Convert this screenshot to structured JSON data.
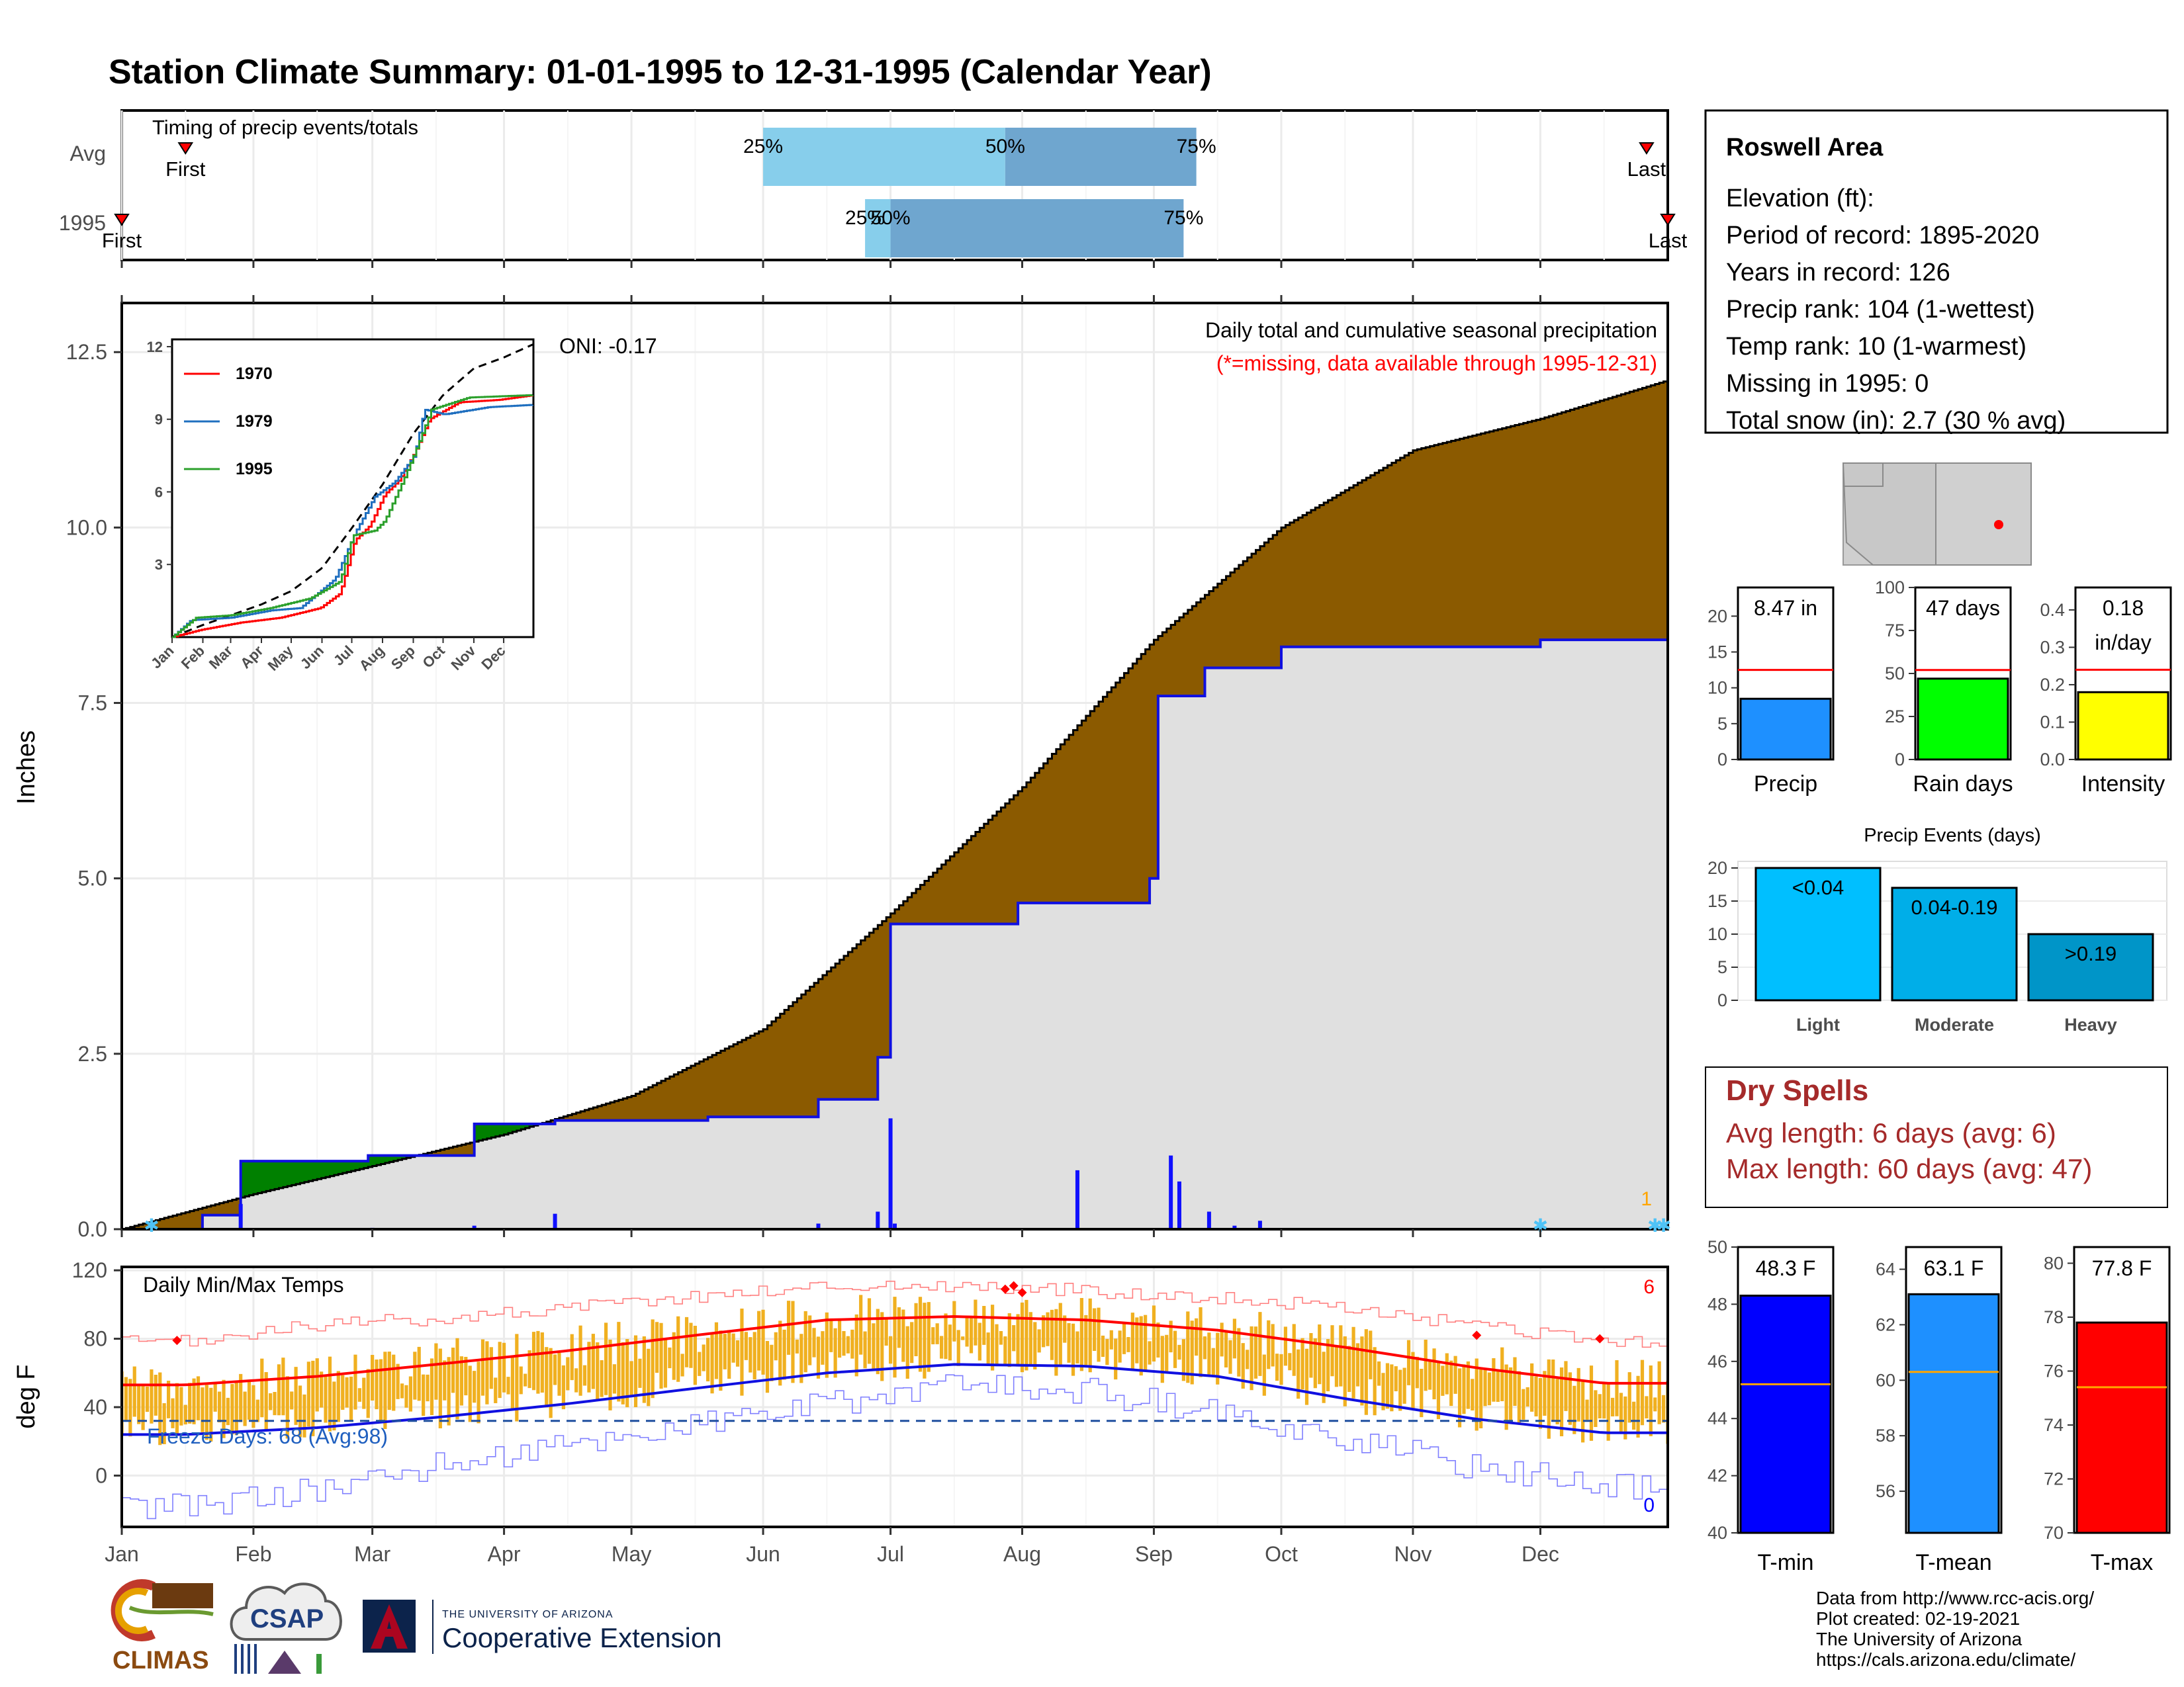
{
  "title": "Station Climate Summary: 01-01-1995 to 12-31-1995 (Calendar Year)",
  "colors": {
    "title": "#000080",
    "precip_area": "#8B5A00",
    "cum_year_line": "#1010e0",
    "wet_excess": "#008000",
    "gray_fill": "#e0e0e0",
    "daily_bar": "#1010ff",
    "temp_bar": "#f0b020",
    "tmax_line": "#ff0000",
    "tmin_line": "#1010e0",
    "q_light": "#87ceeb",
    "q_dark": "#6fa6cf",
    "red_text": "#ff0000",
    "dry_text": "#a52a2a"
  },
  "timing": {
    "caption": "Timing of precip events/totals",
    "rows": [
      "Avg",
      "1995"
    ],
    "avg": {
      "first_label": "First",
      "last_label": "Last",
      "first": 16,
      "last": 360,
      "q25": 152,
      "q50": 209,
      "q75": 254,
      "p25": "25%",
      "p50": "50%",
      "p75": "75%"
    },
    "y1995": {
      "first_label": "First",
      "last_label": "Last",
      "first": 1,
      "last": 365,
      "q25": 176,
      "q50": 182,
      "q75": 251,
      "p25": "25%",
      "p50": "50%",
      "p75": "75%"
    }
  },
  "precip_panel": {
    "ylabel": "Inches",
    "yticks": [
      "0.0",
      "2.5",
      "5.0",
      "7.5",
      "10.0",
      "12.5"
    ],
    "oni": "ONI: -0.17",
    "caption": "Daily total and cumulative seasonal precipitation",
    "missing_note": "(*=missing, data available through 1995-12-31)",
    "count_label": "1"
  },
  "inset": {
    "yticks": [
      "3",
      "6",
      "9",
      "12"
    ],
    "months": [
      "Jan",
      "Feb",
      "Mar",
      "Apr",
      "May",
      "Jun",
      "Jul",
      "Aug",
      "Sep",
      "Oct",
      "Nov",
      "Dec"
    ],
    "legend": [
      "1970",
      "1979",
      "1995"
    ],
    "legend_colors": [
      "#ff0000",
      "#1f6fbf",
      "#2ca02c"
    ]
  },
  "temp_panel": {
    "ylabel": "deg F",
    "yticks": [
      "0",
      "40",
      "80",
      "120"
    ],
    "caption": "Daily Min/Max Temps",
    "freeze_label": "Freeze Days: 68 (Avg:98)",
    "top_count": "6",
    "bottom_count": "0"
  },
  "months": [
    "Jan",
    "Feb",
    "Mar",
    "Apr",
    "May",
    "Jun",
    "Jul",
    "Aug",
    "Sep",
    "Oct",
    "Nov",
    "Dec"
  ],
  "info": {
    "station": "Roswell Area",
    "lines": [
      "Elevation (ft):",
      "Period of record: 1895-2020",
      "Years in record: 126",
      "Precip rank: 104 (1-wettest)",
      "Temp rank: 10 (1-warmest)",
      "Missing in 1995: 0",
      "Total snow (in): 2.7 (30 % avg)"
    ]
  },
  "stat_bars": [
    {
      "label": "Precip",
      "value_text": "8.47 in",
      "value": 8.47,
      "avg": 12.5,
      "ymax": 24,
      "ticks": [
        "0",
        "5",
        "10",
        "15",
        "20"
      ],
      "tickvals": [
        0,
        5,
        10,
        15,
        20
      ],
      "color": "#1e90ff"
    },
    {
      "label": "Rain days",
      "value_text": "47 days",
      "value": 47,
      "avg": 52,
      "ymax": 100,
      "ticks": [
        "0",
        "25",
        "50",
        "75",
        "100"
      ],
      "tickvals": [
        0,
        25,
        50,
        75,
        100
      ],
      "color": "#00ff00"
    },
    {
      "label": "Intensity",
      "value_text": "0.18\nin/day",
      "value": 0.18,
      "avg": 0.24,
      "ymax": 0.46,
      "ticks": [
        "0.0",
        "0.1",
        "0.2",
        "0.3",
        "0.4"
      ],
      "tickvals": [
        0,
        0.1,
        0.2,
        0.3,
        0.4
      ],
      "color": "#ffff00"
    }
  ],
  "events": {
    "title": "Precip Events (days)",
    "ticks": [
      "0",
      "5",
      "10",
      "15",
      "20"
    ],
    "bars": [
      {
        "name": "Light",
        "label": "<0.04",
        "value": 20,
        "color": "#00bfff"
      },
      {
        "name": "Moderate",
        "label": "0.04-0.19",
        "value": 17,
        "color": "#00aee8"
      },
      {
        "name": "Heavy",
        "label": ">0.19",
        "value": 10,
        "color": "#0095c8"
      }
    ]
  },
  "dry_spells": {
    "title": "Dry Spells",
    "avg": "Avg length: 6 days (avg: 6)",
    "max": "Max length: 60 days (avg: 47)"
  },
  "temp_bars": [
    {
      "label": "T-min",
      "value_text": "48.3 F",
      "value": 48.3,
      "avg": 45.2,
      "ymin": 40,
      "ymax": 50,
      "ticks": [
        "40",
        "42",
        "44",
        "46",
        "48",
        "50"
      ],
      "tickvals": [
        40,
        42,
        44,
        46,
        48,
        50
      ],
      "color": "#0000ff"
    },
    {
      "label": "T-mean",
      "value_text": "63.1 F",
      "value": 63.1,
      "avg": 60.3,
      "ymin": 54.5,
      "ymax": 64.8,
      "ticks": [
        "56",
        "58",
        "60",
        "62",
        "64"
      ],
      "tickvals": [
        56,
        58,
        60,
        62,
        64
      ],
      "color": "#1e90ff"
    },
    {
      "label": "T-max",
      "value_text": "77.8 F",
      "value": 77.8,
      "avg": 75.4,
      "ymin": 70,
      "ymax": 80.6,
      "ticks": [
        "70",
        "72",
        "74",
        "76",
        "78",
        "80"
      ],
      "tickvals": [
        70,
        72,
        74,
        76,
        78,
        80
      ],
      "color": "#ff0000"
    }
  ],
  "footer": {
    "lines": [
      "Data from http://www.rcc-acis.org/",
      "Plot created: 02-19-2021",
      "The University of Arizona",
      "https://cals.arizona.edu/climate/"
    ]
  },
  "logos": {
    "climas": "CLIMAS",
    "csap": "CSAP",
    "ua_small": "THE UNIVERSITY OF ARIZONA",
    "ua_big": "Cooperative Extension"
  },
  "chart_data": [
    {
      "type": "area",
      "title": "Daily total and cumulative seasonal precipitation",
      "ylabel": "Inches",
      "ylim": [
        0,
        13.2
      ],
      "series": [
        {
          "name": "Average cumulative",
          "x": [
            "01-01",
            "02-01",
            "03-01",
            "04-01",
            "05-01",
            "06-01",
            "07-01",
            "08-01",
            "09-01",
            "10-01",
            "11-01",
            "12-01",
            "12-31"
          ],
          "values": [
            0.0,
            0.5,
            0.9,
            1.35,
            1.9,
            2.85,
            4.5,
            6.3,
            8.4,
            10.0,
            11.1,
            11.55,
            12.1
          ]
        },
        {
          "name": "1995 cumulative",
          "x": [
            "01-01",
            "01-20",
            "01-29",
            "02-28",
            "03-25",
            "04-13",
            "05-19",
            "06-14",
            "06-28",
            "07-01",
            "07-31",
            "08-31",
            "09-02",
            "09-13",
            "10-01",
            "12-01",
            "12-31"
          ],
          "values": [
            0.0,
            0.2,
            0.97,
            1.05,
            1.5,
            1.55,
            1.6,
            1.85,
            2.45,
            4.35,
            4.65,
            5.0,
            7.6,
            8.0,
            8.3,
            8.4,
            8.47
          ]
        }
      ],
      "daily_totals": [
        {
          "x": "01-29",
          "value": 0.36
        },
        {
          "x": "03-01",
          "value": 0.02
        },
        {
          "x": "03-25",
          "value": 0.05
        },
        {
          "x": "04-13",
          "value": 0.22
        },
        {
          "x": "06-14",
          "value": 0.08
        },
        {
          "x": "06-28",
          "value": 0.25
        },
        {
          "x": "07-01",
          "value": 1.58
        },
        {
          "x": "07-02",
          "value": 0.08
        },
        {
          "x": "07-31",
          "value": 0.01
        },
        {
          "x": "08-14",
          "value": 0.84
        },
        {
          "x": "09-05",
          "value": 1.05
        },
        {
          "x": "09-07",
          "value": 0.68
        },
        {
          "x": "09-14",
          "value": 0.25
        },
        {
          "x": "09-20",
          "value": 0.05
        },
        {
          "x": "09-26",
          "value": 0.12
        }
      ]
    },
    {
      "type": "line",
      "title": "Daily Min/Max Temps",
      "ylabel": "deg F",
      "ylim": [
        -30,
        120
      ],
      "x": [
        "Jan",
        "Feb",
        "Mar",
        "Apr",
        "May",
        "Jun",
        "Jul",
        "Aug",
        "Sep",
        "Oct",
        "Nov",
        "Dec"
      ],
      "series": [
        {
          "name": "Avg max",
          "values": [
            53,
            58,
            65,
            73,
            82,
            91,
            93,
            91,
            85,
            75,
            63,
            54
          ]
        },
        {
          "name": "Avg min",
          "values": [
            24,
            28,
            34,
            42,
            51,
            60,
            65,
            64,
            58,
            45,
            33,
            25
          ]
        },
        {
          "name": "Record max",
          "values": [
            78,
            88,
            92,
            98,
            105,
            111,
            111,
            108,
            104,
            98,
            87,
            78
          ]
        },
        {
          "name": "Record min",
          "values": [
            -18,
            -8,
            6,
            18,
            30,
            42,
            52,
            50,
            36,
            22,
            5,
            -6
          ]
        }
      ]
    }
  ]
}
